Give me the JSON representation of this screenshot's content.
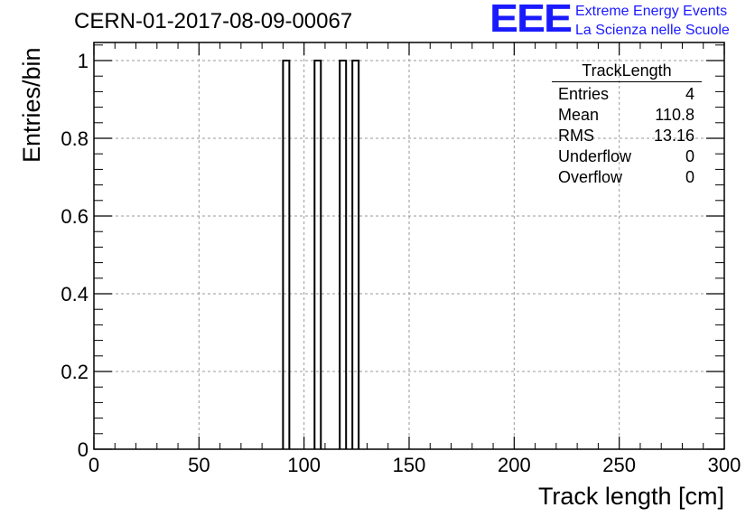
{
  "header": {
    "run_title": "CERN-01-2017-08-09-00067",
    "logo_text": "EEE",
    "logo_line1": "Extreme Energy Events",
    "logo_line2": "La Scienza nelle Scuole",
    "brand_color": "#1a1aff"
  },
  "stats_box": {
    "title": "TrackLength",
    "rows": [
      {
        "label": "Entries",
        "value": "4"
      },
      {
        "label": "Mean",
        "value": "110.8"
      },
      {
        "label": "RMS",
        "value": "13.16"
      },
      {
        "label": "Underflow",
        "value": "0"
      },
      {
        "label": "Overflow",
        "value": "0"
      }
    ]
  },
  "chart_data": {
    "type": "bar",
    "xlabel": "Track length [cm]",
    "ylabel": "Entries/bin",
    "xlim": [
      0,
      300
    ],
    "ylim": [
      0,
      1
    ],
    "bin_width": 3,
    "bins": [
      {
        "x0": 90,
        "x1": 93,
        "value": 1
      },
      {
        "x0": 105,
        "x1": 108,
        "value": 1
      },
      {
        "x0": 117,
        "x1": 120,
        "value": 1
      },
      {
        "x0": 123,
        "x1": 126,
        "value": 1
      }
    ],
    "x_ticks": [
      0,
      50,
      100,
      150,
      200,
      250,
      300
    ],
    "x_tick_labels": [
      "0",
      "50",
      "100",
      "150",
      "200",
      "250",
      "300"
    ],
    "y_ticks": [
      0,
      0.2,
      0.4,
      0.6,
      0.8,
      1
    ],
    "y_tick_labels": [
      "0",
      "0.2",
      "0.4",
      "0.6",
      "0.8",
      "1"
    ],
    "grid": true
  }
}
